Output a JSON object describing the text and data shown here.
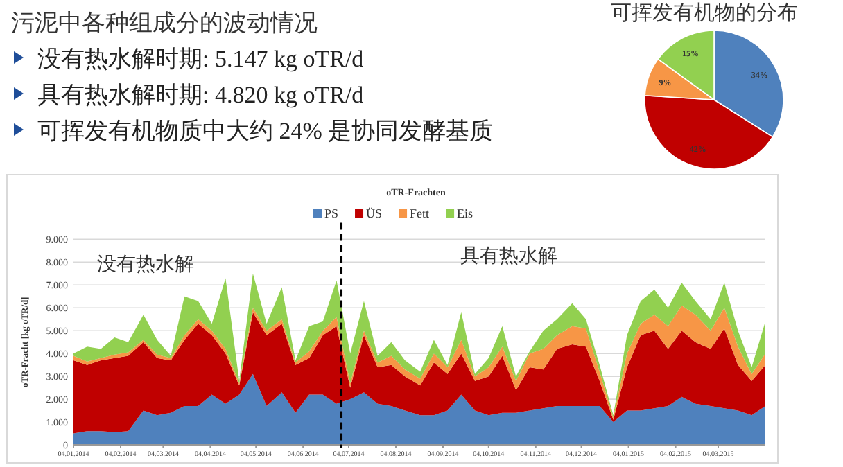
{
  "chart_data": [
    {
      "type": "other",
      "title": "污泥中各种组成分的波动情况",
      "annotations": [
        "没有热水解时期: 5.147 kg oTR/d",
        "具有热水解时期: 4.820 kg oTR/d",
        "可挥发有机物质中大约 24% 是协同发酵基质"
      ]
    },
    {
      "type": "pie",
      "title": "可挥发有机物的分布",
      "categories": [
        null,
        null,
        null,
        null
      ],
      "values": [
        34,
        42,
        9,
        15
      ],
      "colors": [
        "#4f81bd",
        "#c00000",
        "#f79646",
        "#92d050"
      ],
      "value_labels": [
        "34%",
        "42%",
        "9%",
        "15%"
      ]
    },
    {
      "type": "area",
      "stacked": true,
      "title": "oTR-Frachten",
      "ylabel": "oTR-Fracht [kg oTR/d]",
      "legend": "top",
      "grid": "y",
      "x": [
        "2014-01-04",
        "2014-01-13",
        "2014-01-22",
        "2014-01-31",
        "2014-02-09",
        "2014-02-19",
        "2014-02-28",
        "2014-03-09",
        "2014-03-18",
        "2014-03-27",
        "2014-04-05",
        "2014-04-14",
        "2014-04-23",
        "2014-05-02",
        "2014-05-11",
        "2014-05-21",
        "2014-05-30",
        "2014-06-08",
        "2014-06-17",
        "2014-06-26",
        "2014-07-05",
        "2014-07-14",
        "2014-07-23",
        "2014-08-01",
        "2014-08-10",
        "2014-08-20",
        "2014-08-29",
        "2014-09-07",
        "2014-09-16",
        "2014-09-25",
        "2014-10-04",
        "2014-10-13",
        "2014-10-22",
        "2014-10-31",
        "2014-11-09",
        "2014-11-18",
        "2014-11-28",
        "2014-12-07",
        "2014-12-16",
        "2014-12-25",
        "2015-01-03",
        "2015-01-12",
        "2015-01-21",
        "2015-01-30",
        "2015-02-08",
        "2015-02-17",
        "2015-02-27",
        "2015-03-08",
        "2015-03-17",
        "2015-03-26",
        "2015-04-04"
      ],
      "series": [
        {
          "name": "PS",
          "color": "#4f81bd",
          "values": [
            500,
            600,
            600,
            550,
            600,
            1500,
            1300,
            1400,
            1700,
            1700,
            2200,
            1800,
            2200,
            3100,
            1700,
            2300,
            1400,
            2200,
            2200,
            1800,
            2000,
            2300,
            1800,
            1700,
            1500,
            1300,
            1300,
            1500,
            2200,
            1500,
            1300,
            1400,
            1400,
            1500,
            1600,
            1700,
            1700,
            1700,
            1700,
            1000,
            1500,
            1500,
            1600,
            1700,
            2100,
            1800,
            1700,
            1600,
            1500,
            1300,
            1700
          ]
        },
        {
          "name": "ÜS",
          "color": "#c00000",
          "values": [
            3200,
            2900,
            3100,
            3250,
            3300,
            3000,
            2500,
            2300,
            2900,
            3600,
            2600,
            2200,
            400,
            2700,
            3100,
            3000,
            2100,
            1600,
            2600,
            3400,
            500,
            2500,
            1600,
            1800,
            1500,
            1300,
            2300,
            1600,
            1800,
            1300,
            1700,
            2500,
            1000,
            1900,
            1700,
            2500,
            2700,
            2600,
            1100,
            100,
            1900,
            3300,
            3400,
            2500,
            2900,
            2700,
            2500,
            3500,
            2000,
            1500,
            1800
          ]
        },
        {
          "name": "Fett",
          "color": "#f79646",
          "values": [
            200,
            150,
            100,
            150,
            150,
            100,
            150,
            100,
            200,
            200,
            200,
            200,
            100,
            200,
            200,
            200,
            100,
            300,
            200,
            400,
            200,
            200,
            200,
            400,
            300,
            300,
            400,
            300,
            600,
            200,
            400,
            400,
            400,
            600,
            900,
            600,
            800,
            800,
            400,
            100,
            600,
            500,
            700,
            1000,
            1100,
            1200,
            800,
            900,
            800,
            300,
            500
          ]
        },
        {
          "name": "Eis",
          "color": "#92d050",
          "values": [
            100,
            650,
            400,
            750,
            450,
            1100,
            650,
            100,
            1700,
            800,
            300,
            3100,
            100,
            1500,
            300,
            1400,
            100,
            1100,
            400,
            1600,
            1300,
            1300,
            300,
            600,
            400,
            300,
            600,
            100,
            1200,
            100,
            400,
            900,
            200,
            100,
            800,
            700,
            1000,
            400,
            300,
            100,
            800,
            1000,
            1100,
            800,
            1000,
            600,
            500,
            1100,
            700,
            300,
            1400
          ]
        }
      ],
      "xlim": [
        "2014-01-04",
        "2015-04-04"
      ],
      "xticks": [
        {
          "value": "2014-01-04",
          "label": "04.01.2014"
        },
        {
          "value": "2014-02-04",
          "label": "04.02.2014"
        },
        {
          "value": "2014-03-04",
          "label": "04.03.2014"
        },
        {
          "value": "2014-04-04",
          "label": "04.04.2014"
        },
        {
          "value": "2014-05-04",
          "label": "04.05.2014"
        },
        {
          "value": "2014-06-04",
          "label": "04.06.2014"
        },
        {
          "value": "2014-07-04",
          "label": "04.07.2014"
        },
        {
          "value": "2014-08-04",
          "label": "04.08.2014"
        },
        {
          "value": "2014-09-04",
          "label": "04.09.2014"
        },
        {
          "value": "2014-10-04",
          "label": "04.10.2014"
        },
        {
          "value": "2014-11-04",
          "label": "04.11.2014"
        },
        {
          "value": "2014-12-04",
          "label": "04.12.2014"
        },
        {
          "value": "2015-01-04",
          "label": "04.01.2015"
        },
        {
          "value": "2015-02-04",
          "label": "04.02.2015"
        },
        {
          "value": "2015-03-04",
          "label": "04.03.2015"
        }
      ],
      "ylim": [
        0,
        9000
      ],
      "yticks": [
        0,
        {
          "value": 1000,
          "label": "1.000"
        },
        {
          "value": 2000,
          "label": "2.000"
        },
        {
          "value": 3000,
          "label": "3.000"
        },
        {
          "value": 4000,
          "label": "4.000"
        },
        {
          "value": 5000,
          "label": "5.000"
        },
        {
          "value": 6000,
          "label": "6.000"
        },
        {
          "value": 7000,
          "label": "7.000"
        },
        {
          "value": 8000,
          "label": "8.000"
        },
        {
          "value": 9000,
          "label": "9.000"
        }
      ],
      "ref_lines": [
        {
          "axis": "x",
          "value": "2014-06-29",
          "color": "#000000",
          "line_style": "dashed"
        }
      ],
      "annotations": [
        "没有热水解",
        "具有热水解"
      ]
    }
  ]
}
